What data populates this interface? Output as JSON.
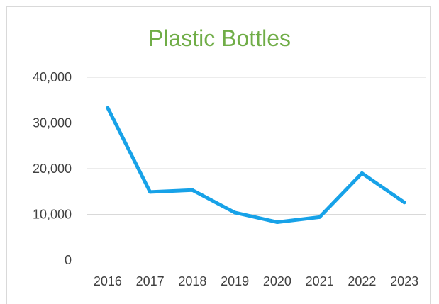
{
  "chart_data": {
    "type": "line",
    "title": "Plastic Bottles",
    "xlabel": "",
    "ylabel": "",
    "categories": [
      "2016",
      "2017",
      "2018",
      "2019",
      "2020",
      "2021",
      "2022",
      "2023"
    ],
    "series": [
      {
        "values": [
          33300,
          14900,
          15300,
          10400,
          8300,
          9400,
          19000,
          12600
        ]
      }
    ],
    "ylim": [
      0,
      40000
    ],
    "yticks": [
      0,
      10000,
      20000,
      30000,
      40000
    ],
    "ytick_labels": [
      "0",
      "10,000",
      "20,000",
      "30,000",
      "40,000"
    ],
    "grid": true,
    "legend": "none",
    "colors": {
      "title": "#70ad47",
      "line": "#17a2e8",
      "grid": "#d9d9d9",
      "text": "#404040"
    }
  }
}
